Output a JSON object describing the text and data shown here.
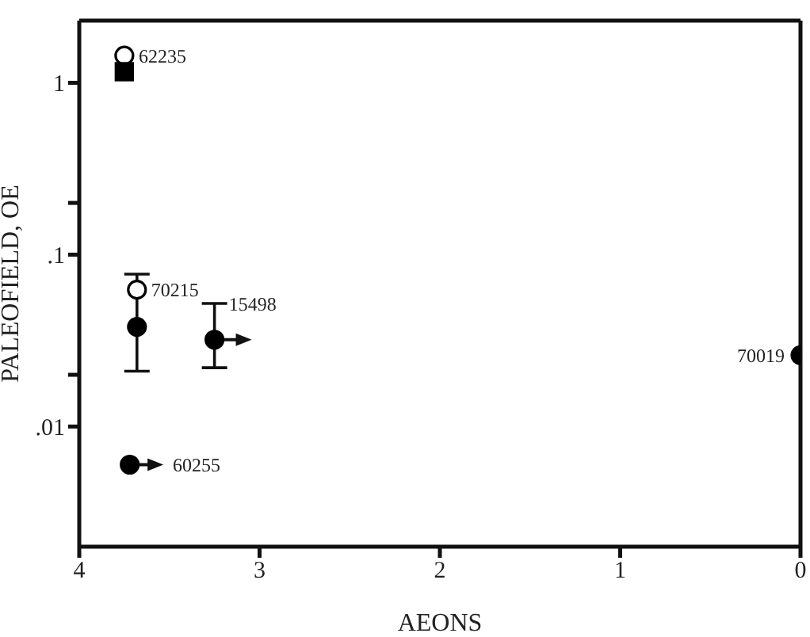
{
  "chart_data": {
    "type": "scatter",
    "xlabel": "AEONS",
    "ylabel": "PALEOFIELD, OE",
    "log": "y",
    "xlim": [
      4,
      0
    ],
    "xticks": [
      4,
      3,
      2,
      1,
      0
    ],
    "ylim": [
      0.002,
      2.3
    ],
    "yticks": [
      {
        "value": 0.01,
        "label": ".01"
      },
      {
        "value": 0.02,
        "label": null
      },
      {
        "value": 0.1,
        "label": ".1"
      },
      {
        "value": 0.2,
        "label": null
      },
      1
    ],
    "series": [
      {
        "color": "#ffffff",
        "marker": "circle",
        "x": [
          3.75,
          3.68
        ],
        "values": [
          1.44,
          0.0625
        ]
      },
      {
        "color": "#000000",
        "marker": "circle",
        "x": [
          3.68,
          3.25,
          3.72,
          0
        ],
        "values": [
          0.038,
          0.032,
          0.006,
          0.026
        ],
        "errors": [
          [
            0.021,
            0.077
          ],
          [
            0.022,
            0.052
          ],
          null,
          null
        ],
        "xerrors": [
          null,
          [
            3.07,
            3.25
          ],
          [
            3.56,
            3.72
          ],
          null
        ]
      },
      {
        "color": "#000000",
        "marker": "square",
        "x": [
          3.75
        ],
        "values": [
          1.16
        ]
      }
    ],
    "annotations": [
      {
        "text": "62235",
        "x": 3.75,
        "y": 1.44
      },
      {
        "text": "70215",
        "x": 3.68,
        "y": 0.0625
      },
      {
        "text": "15498",
        "x": 3.25,
        "y": 0.052
      },
      {
        "text": "60255",
        "x": 3.72,
        "y": 0.006
      },
      {
        "text": "70019",
        "x": 0,
        "y": 0.026
      }
    ]
  }
}
